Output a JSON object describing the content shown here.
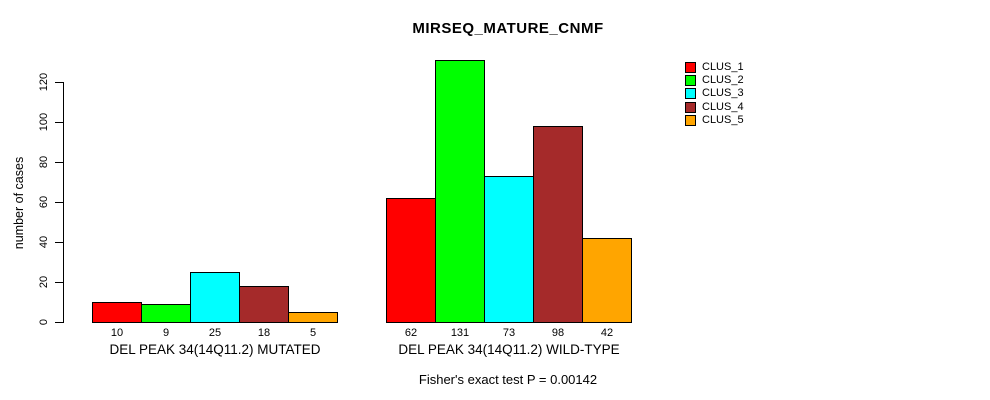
{
  "chart_data": {
    "type": "bar",
    "title": "MIRSEQ_MATURE_CNMF",
    "ylabel": "number of cases",
    "xlabel": "",
    "yticks": [
      0,
      20,
      40,
      60,
      80,
      100,
      120
    ],
    "ylim": [
      0,
      120
    ],
    "grid": false,
    "legend_position": "right",
    "bar_value_labels": true,
    "categories": [
      "DEL PEAK 34(14Q11.2) MUTATED",
      "DEL PEAK 34(14Q11.2) WILD-TYPE"
    ],
    "series": [
      {
        "name": "CLUS_1",
        "color": "#FF0000",
        "values": [
          10,
          62
        ]
      },
      {
        "name": "CLUS_2",
        "color": "#00FF00",
        "values": [
          9,
          131
        ]
      },
      {
        "name": "CLUS_3",
        "color": "#00FFFF",
        "values": [
          25,
          73
        ]
      },
      {
        "name": "CLUS_4",
        "color": "#A52A2A",
        "values": [
          18,
          98
        ]
      },
      {
        "name": "CLUS_5",
        "color": "#FFA500",
        "values": [
          5,
          42
        ]
      }
    ],
    "footnote": "Fisher's exact test P = 0.00142"
  },
  "colors": {
    "background": "#FFFFFF",
    "axis": "#000000",
    "text": "#000000"
  }
}
